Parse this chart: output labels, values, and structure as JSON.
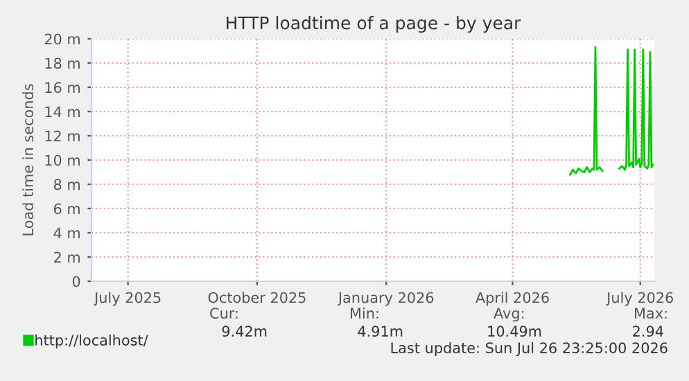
{
  "chart_data": {
    "type": "line",
    "title": "HTTP loadtime of a page - by year",
    "ylabel": "Load time in seconds",
    "xlim": [
      "2025-06-20",
      "2026-07-26"
    ],
    "xticks": [
      {
        "value": "2025-07-16",
        "label": "July 2025"
      },
      {
        "value": "2025-10-16",
        "label": "October 2025"
      },
      {
        "value": "2026-01-16",
        "label": "January 2026"
      },
      {
        "value": "2026-04-16",
        "label": "April 2026"
      },
      {
        "value": "2026-07-16",
        "label": "July 2026"
      }
    ],
    "ylim": [
      0,
      20
    ],
    "yticks": [
      0,
      {
        "value": 2,
        "label": "2 m"
      },
      {
        "value": 4,
        "label": "4 m"
      },
      {
        "value": 6,
        "label": "6 m"
      },
      {
        "value": 8,
        "label": "8 m"
      },
      {
        "value": 10,
        "label": "10 m"
      },
      {
        "value": 12,
        "label": "12 m"
      },
      {
        "value": 14,
        "label": "14 m"
      },
      {
        "value": 16,
        "label": "16 m"
      },
      {
        "value": 18,
        "label": "18 m"
      },
      {
        "value": 20,
        "label": "20 m"
      }
    ],
    "grid": true,
    "legend": "bottom",
    "marker": "none",
    "line_style": "solid",
    "series": [
      {
        "name": "http://localhost/",
        "color": "#00cc00",
        "x": [
          "2026-05-27",
          "2026-05-29",
          "2026-05-31",
          "2026-06-02",
          "2026-06-04",
          "2026-06-06",
          "2026-06-08",
          "2026-06-10",
          "2026-06-12",
          "2026-06-13",
          "2026-06-14",
          "2026-06-15",
          "2026-06-17",
          "2026-06-19",
          "2026-06-25",
          "2026-07-01",
          "2026-07-03",
          "2026-07-05",
          "2026-07-06",
          "2026-07-07",
          "2026-07-08",
          "2026-07-10",
          "2026-07-11",
          "2026-07-12",
          "2026-07-13",
          "2026-07-15",
          "2026-07-16",
          "2026-07-17",
          "2026-07-18",
          "2026-07-19",
          "2026-07-21",
          "2026-07-22",
          "2026-07-23",
          "2026-07-24",
          "2026-07-25"
        ],
        "values": [
          8.8,
          9.2,
          8.9,
          9.3,
          9.1,
          9.0,
          9.4,
          9.0,
          9.3,
          9.2,
          19.3,
          9.2,
          9.4,
          9.1,
          null,
          9.3,
          9.5,
          9.2,
          9.6,
          19.1,
          9.5,
          9.8,
          9.4,
          19.1,
          9.6,
          10.1,
          9.4,
          9.7,
          19.1,
          9.5,
          9.3,
          9.6,
          18.9,
          9.4,
          9.6
        ]
      }
    ],
    "annotations": [
      "Cur:",
      "Min:",
      "Avg:",
      "Max:",
      "9.42m",
      "4.91m",
      "10.49m",
      "2.94",
      "Last update: Sun Jul 26 23:25:00 2026"
    ]
  }
}
